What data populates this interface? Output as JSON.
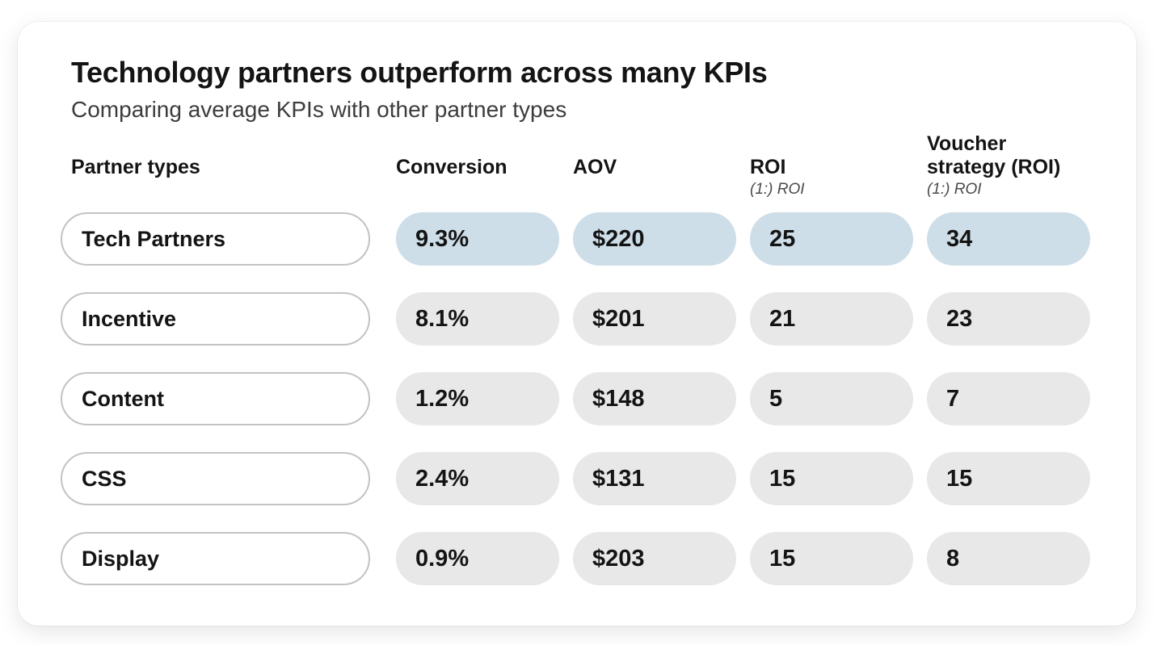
{
  "chart_data": {
    "type": "table",
    "title": "Technology partners outperform across many KPIs",
    "subtitle": "Comparing average KPIs with other partner types",
    "row_header_label": "Partner types",
    "columns": [
      {
        "label": "Conversion",
        "sublabel": ""
      },
      {
        "label": "AOV",
        "sublabel": ""
      },
      {
        "label": "ROI",
        "sublabel": "(1:) ROI"
      },
      {
        "label": "Voucher strategy (ROI)",
        "sublabel": "(1:) ROI"
      }
    ],
    "rows": [
      {
        "label": "Tech Partners",
        "highlighted": true,
        "values": [
          "9.3%",
          "$220",
          "25",
          "34"
        ]
      },
      {
        "label": "Incentive",
        "highlighted": false,
        "values": [
          "8.1%",
          "$201",
          "21",
          "23"
        ]
      },
      {
        "label": "Content",
        "highlighted": false,
        "values": [
          "1.2%",
          "$148",
          "5",
          "7"
        ]
      },
      {
        "label": "CSS",
        "highlighted": false,
        "values": [
          "2.4%",
          "$131",
          "15",
          "15"
        ]
      },
      {
        "label": "Display",
        "highlighted": false,
        "values": [
          "0.9%",
          "$203",
          "15",
          "8"
        ]
      }
    ],
    "colors": {
      "highlight_pill": "#cddee8",
      "default_pill": "#e8e8e8",
      "label_pill_border": "#c3c3c3",
      "title_text": "#141414",
      "subtitle_text": "#3c3c3c",
      "sublabel_text": "#4a4a4a"
    }
  }
}
